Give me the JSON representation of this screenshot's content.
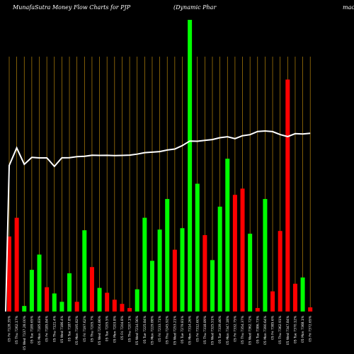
{
  "colors": {
    "background": "#000000",
    "grid": "#b8860b",
    "up": "#00ff00",
    "down": "#ff0000",
    "price_line": "#ffffff"
  },
  "chart_data": {
    "type": "bar",
    "title_left": "MunafaSutra  Money Flow  Charts for PJP",
    "title_middle": "(Dynamic Phar",
    "title_right": "maceu",
    "grid": true,
    "ylim": [
      0,
      420
    ],
    "categories": [
      "05 Fri 7128.35%",
      "05 Thu 7262.17%",
      "05 Wed 7137.28.00%",
      "05 Tue 7189.65%",
      "05 Mon 7185.83%",
      "05 Fri 7185.84%",
      "05 Thu 7121.4%",
      "05 Wed 7186.4%",
      "05 Tue 7187.8%",
      "05 Mon 7195.82%",
      "05 Fri 7197.62%",
      "05 Thu 7205.7%",
      "05 Wed 7204.86%",
      "05 Tue 7205.5%",
      "05 Mon 7203.8%",
      "05 Fri 7204.8%",
      "05 Thu 7207.1%",
      "05 Wed 7214.56%",
      "05 Tue 7225.84%",
      "05 Mon 7229.88%",
      "05 Fri 7233.71%",
      "05 Thu 7245.92%",
      "05 Wed 7253.21%",
      "05 Tue 7279.81%",
      "05 Mon 7314.26%",
      "05 Fri 7312.60%",
      "05 Thu 7318.89%",
      "05 Wed 7325.51%",
      "05 Tue 7339.46%",
      "05 Mon 7347.18%",
      "05 Fri 7332.75%",
      "05 Thu 7354.37%",
      "05 Wed 7362.72%",
      "05 Tue 7386.73%",
      "05 Mon 7390.64%",
      "05 Fri 7385.6%",
      "05 Thu 7362.91%",
      "05 Wed 7347.84%",
      "05 Tue 7370.12%",
      "05 Mon 7368.1%",
      "05 Fri 7372.65%"
    ],
    "series": [
      {
        "values": [
          108,
          135,
          8,
          60,
          82,
          35,
          26,
          14,
          55,
          14,
          117,
          64,
          34,
          27,
          17,
          11,
          5,
          32,
          135,
          73,
          118,
          162,
          89,
          120,
          420,
          184,
          110,
          74,
          151,
          220,
          168,
          177,
          112,
          5,
          162,
          29,
          116,
          334,
          40,
          49,
          6
        ],
        "directions": [
          "down",
          "down",
          "up",
          "up",
          "up",
          "down",
          "up",
          "up",
          "up",
          "down",
          "up",
          "down",
          "up",
          "down",
          "down",
          "down",
          "down",
          "up",
          "up",
          "up",
          "up",
          "up",
          "down",
          "up",
          "up",
          "up",
          "down",
          "up",
          "up",
          "up",
          "down",
          "down",
          "up",
          "down",
          "up",
          "down",
          "down",
          "down",
          "down",
          "up",
          "down"
        ]
      },
      {
        "type": "line",
        "values": [
          7128.35,
          7262.17,
          7137.28,
          7189.65,
          7185.83,
          7185.84,
          7121.4,
          7186.4,
          7187.8,
          7195.82,
          7197.62,
          7205.7,
          7204.86,
          7205.5,
          7203.8,
          7204.8,
          7207.1,
          7214.56,
          7225.84,
          7229.88,
          7233.71,
          7245.92,
          7253.21,
          7279.81,
          7314.26,
          7312.6,
          7318.89,
          7325.51,
          7339.46,
          7347.18,
          7332.75,
          7354.37,
          7362.72,
          7386.73,
          7390.64,
          7385.6,
          7362.91,
          7347.84,
          7370.12,
          7368.1,
          7372.65
        ]
      }
    ]
  }
}
